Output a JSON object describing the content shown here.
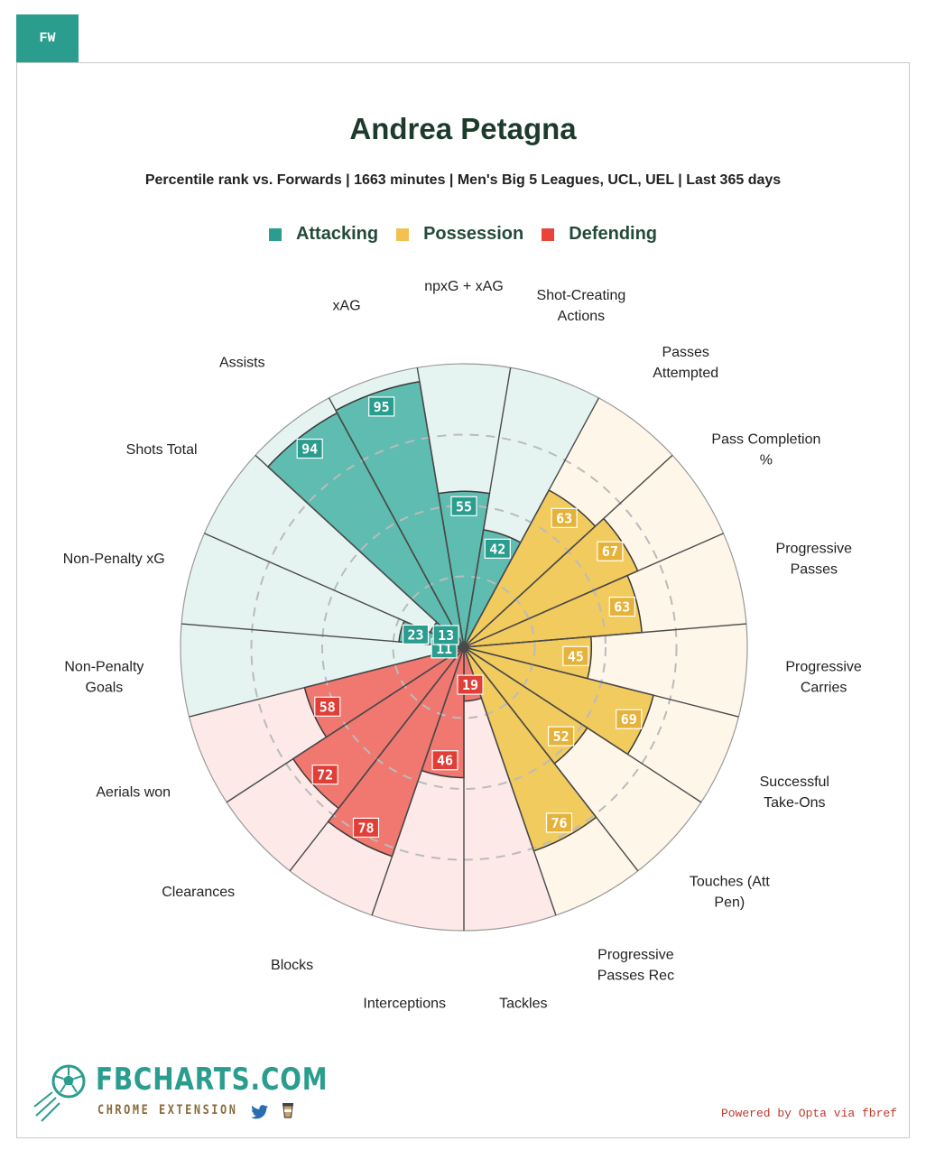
{
  "position_tab": "FW",
  "title": "Andrea Petagna",
  "subtitle": "Percentile rank vs. Forwards | 1663 minutes | Men's Big 5 Leagues, UCL, UEL | Last 365 days",
  "legend": [
    {
      "label": "Attacking",
      "color": "#2a9d8f"
    },
    {
      "label": "Possession",
      "color": "#f4c150"
    },
    {
      "label": "Defending",
      "color": "#e8443a"
    }
  ],
  "chart_data": {
    "type": "polar-bar",
    "scale": [
      0,
      100
    ],
    "groups": {
      "Attacking": {
        "fill": "#5fbcb0",
        "bg": "#e6f4f1",
        "label_bg": "#2a9d8f"
      },
      "Possession": {
        "fill": "#f2cb5f",
        "bg": "#fdf6e9",
        "label_bg": "#e6b33a"
      },
      "Defending": {
        "fill": "#f07870",
        "bg": "#fce9e8",
        "label_bg": "#e03e36"
      }
    },
    "metrics": [
      {
        "name": "npxG + xAG",
        "value": 55,
        "group": "Attacking"
      },
      {
        "name": "Shot-Creating Actions",
        "value": 42,
        "group": "Attacking"
      },
      {
        "name": "Passes Attempted",
        "value": 63,
        "group": "Possession"
      },
      {
        "name": "Pass Completion %",
        "value": 67,
        "group": "Possession"
      },
      {
        "name": "Progressive Passes",
        "value": 63,
        "group": "Possession"
      },
      {
        "name": "Progressive Carries",
        "value": 45,
        "group": "Possession"
      },
      {
        "name": "Successful Take-Ons",
        "value": 69,
        "group": "Possession"
      },
      {
        "name": "Touches (Att Pen)",
        "value": 52,
        "group": "Possession"
      },
      {
        "name": "Progressive Passes Rec",
        "value": 76,
        "group": "Possession"
      },
      {
        "name": "Tackles",
        "value": 19,
        "group": "Defending"
      },
      {
        "name": "Interceptions",
        "value": 46,
        "group": "Defending"
      },
      {
        "name": "Blocks",
        "value": 78,
        "group": "Defending"
      },
      {
        "name": "Clearances",
        "value": 72,
        "group": "Defending"
      },
      {
        "name": "Aerials won",
        "value": 58,
        "group": "Defending"
      },
      {
        "name": "Non-Penalty Goals",
        "value": 11,
        "group": "Attacking"
      },
      {
        "name": "Non-Penalty xG",
        "value": 23,
        "group": "Attacking"
      },
      {
        "name": "Shots Total",
        "value": 13,
        "group": "Attacking"
      },
      {
        "name": "Assists",
        "value": 94,
        "group": "Attacking"
      },
      {
        "name": "xAG",
        "value": 95,
        "group": "Attacking"
      }
    ],
    "grid_rings": [
      25,
      50,
      75
    ]
  },
  "brand": {
    "name": "FBCHARTS.COM",
    "sub": "CHROME EXTENSION"
  },
  "credit": "Powered by Opta via fbref",
  "icons": {
    "brand_logo": "soccer-ball-icon",
    "twitter": "twitter-icon",
    "coffee": "coffee-cup-icon"
  }
}
